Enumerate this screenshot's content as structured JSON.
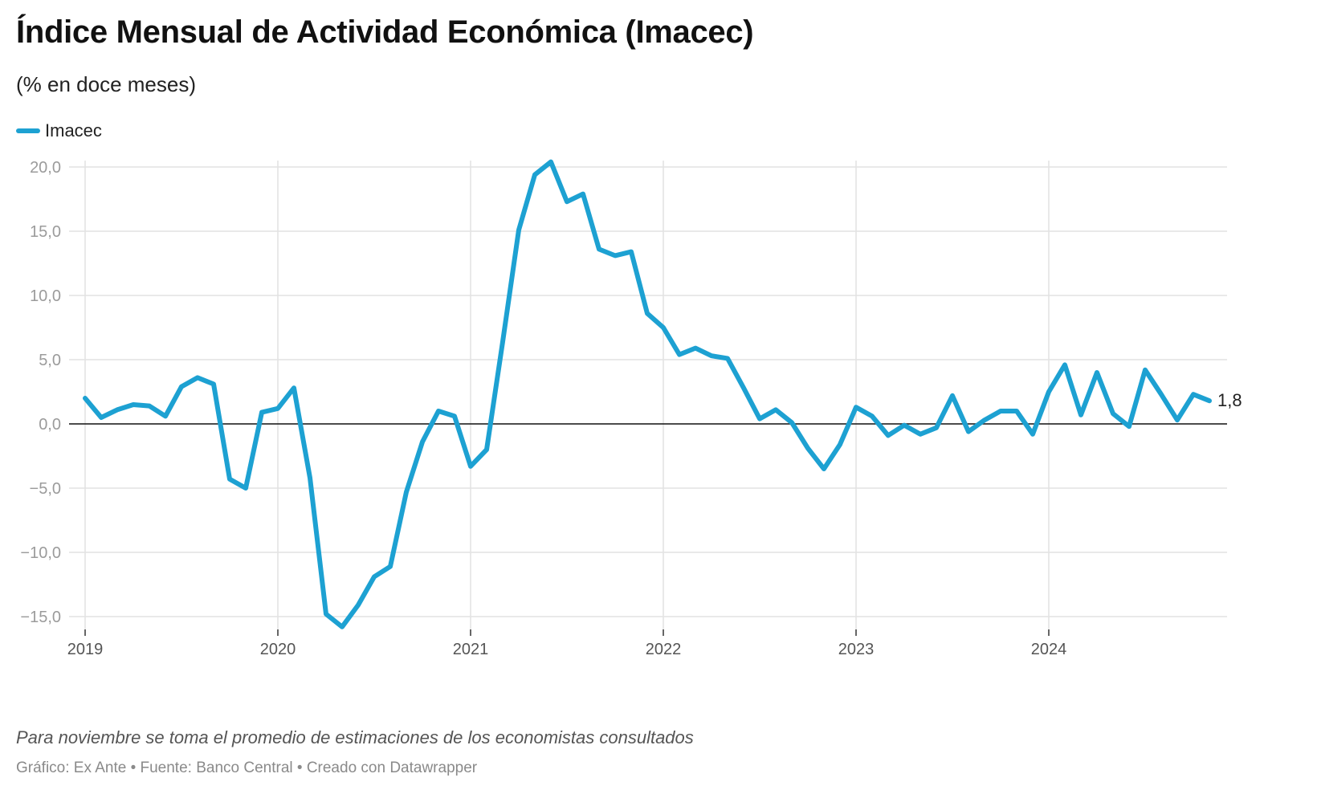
{
  "title": "Índice Mensual de Actividad Económica (Imacec)",
  "subtitle": "(% en doce meses)",
  "legend": {
    "label": "Imacec",
    "color": "#1da1d2"
  },
  "note": "Para noviembre se toma el promedio de estimaciones de los economistas consultados",
  "source": "Gráfico: Ex Ante • Fuente: Banco Central • Creado con Datawrapper",
  "chart_data": {
    "type": "line",
    "title": "Índice Mensual de Actividad Económica (Imacec)",
    "ylabel": "% en doce meses",
    "xlabel": "",
    "ylim": [
      -16,
      20.5
    ],
    "yticks": [
      20,
      15,
      10,
      5,
      0,
      -5,
      -10,
      -15
    ],
    "ytick_labels": [
      "20,0",
      "15,0",
      "10,0",
      "5,0",
      "0,0",
      "−5,0",
      "−10,0",
      "−15,0"
    ],
    "xticks": [
      "2019",
      "2020",
      "2021",
      "2022",
      "2023",
      "2024"
    ],
    "x_start": "2019-01",
    "end_label": "1,8",
    "series": [
      {
        "name": "Imacec",
        "color": "#1da1d2",
        "values": [
          2.0,
          0.5,
          1.1,
          1.5,
          1.4,
          0.6,
          2.9,
          3.6,
          3.1,
          -4.3,
          -5.0,
          0.9,
          1.2,
          2.8,
          -4.2,
          -14.8,
          -15.8,
          -14.1,
          -11.9,
          -11.1,
          -5.3,
          -1.4,
          1.0,
          0.6,
          -3.3,
          -2.0,
          6.4,
          15.1,
          19.4,
          20.4,
          17.3,
          17.9,
          13.6,
          13.1,
          13.4,
          8.6,
          7.5,
          5.4,
          5.9,
          5.3,
          5.1,
          2.8,
          0.4,
          1.1,
          0.1,
          -1.9,
          -3.5,
          -1.6,
          1.3,
          0.6,
          -0.9,
          -0.1,
          -0.8,
          -0.3,
          2.2,
          -0.6,
          0.3,
          1.0,
          1.0,
          -0.8,
          2.5,
          4.6,
          0.7,
          4.0,
          0.8,
          -0.2,
          4.2,
          2.3,
          0.3,
          2.3,
          1.8
        ]
      }
    ]
  }
}
